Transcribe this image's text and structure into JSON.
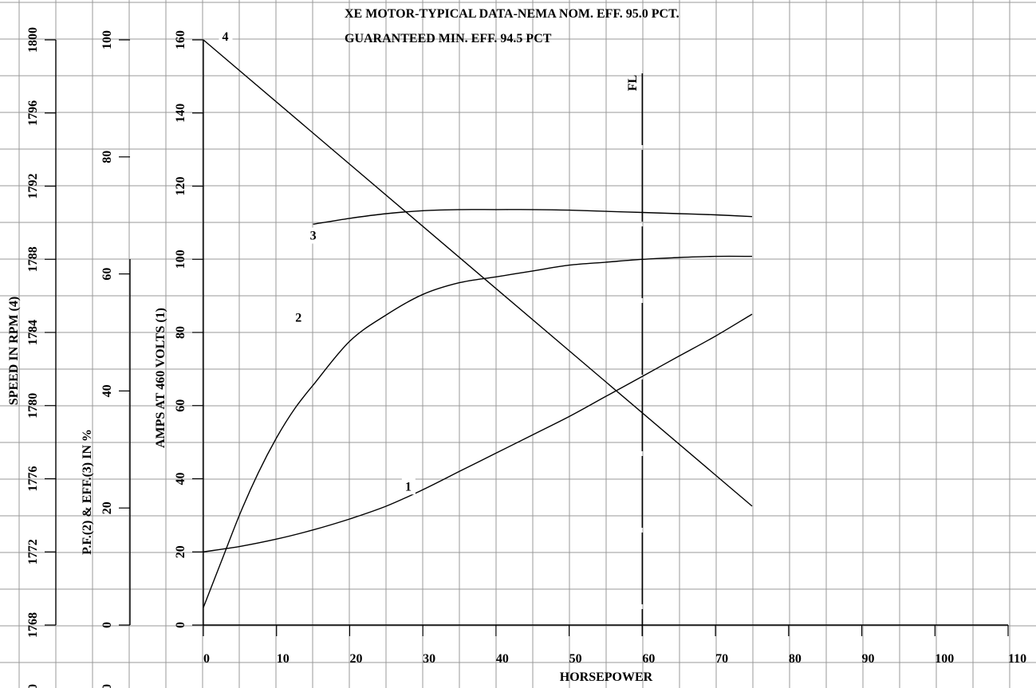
{
  "chart_data": {
    "type": "line",
    "title": "XE MOTOR-TYPICAL DATA-NEMA NOM. EFF. 95.0 PCT.",
    "subtitle": "GUARANTEED MIN. EFF. 94.5 PCT",
    "xlabel": "HORSEPOWER",
    "xlim": [
      0,
      110
    ],
    "x_ticks": [
      "0",
      "10",
      "20",
      "30",
      "40",
      "50",
      "60",
      "70",
      "80",
      "90",
      "100",
      "110"
    ],
    "fl_marker": {
      "label": "FL",
      "x": 60
    },
    "axes": [
      {
        "id": "speed",
        "label": "SPEED IN RPM (4)",
        "ylim": [
          1768,
          1800
        ],
        "ticks": [
          "1768",
          "1772",
          "1776",
          "1780",
          "1784",
          "1788",
          "1792",
          "1796",
          "1800"
        ],
        "extra_tick": "0"
      },
      {
        "id": "pf_eff",
        "label": "P.F.(2) & EFF.(3) IN %",
        "ylim": [
          0,
          100
        ],
        "ticks": [
          "0",
          "20",
          "40",
          "60",
          "80",
          "100"
        ],
        "extra_tick": "0"
      },
      {
        "id": "amps",
        "label": "AMPS AT  460 VOLTS (1)",
        "ylim": [
          0,
          160
        ],
        "ticks": [
          "0",
          "20",
          "40",
          "60",
          "80",
          "100",
          "120",
          "140",
          "160"
        ]
      }
    ],
    "series": [
      {
        "name": "1",
        "axis": "amps",
        "x": [
          0,
          5,
          10,
          15,
          20,
          25,
          30,
          35,
          40,
          45,
          50,
          55,
          60,
          65,
          70,
          75
        ],
        "y": [
          20,
          21.5,
          23.5,
          26,
          29,
          32.5,
          37,
          42,
          47,
          52,
          57,
          62.5,
          68,
          73.5,
          79,
          85
        ]
      },
      {
        "name": "2",
        "axis": "pf_eff",
        "x": [
          0,
          2.5,
          5,
          7.5,
          10,
          12.5,
          15,
          20,
          25,
          30,
          35,
          40,
          45,
          50,
          55,
          60,
          65,
          70,
          75
        ],
        "y": [
          3,
          11,
          19,
          26,
          32,
          37,
          41,
          48.5,
          53,
          56.5,
          58.5,
          59.5,
          60.5,
          61.5,
          62,
          62.5,
          62.8,
          63,
          63
        ]
      },
      {
        "name": "3",
        "axis": "pf_eff",
        "x": [
          15,
          20,
          25,
          30,
          35,
          40,
          45,
          50,
          55,
          60,
          65,
          70,
          75
        ],
        "y": [
          68.5,
          69.5,
          70.3,
          70.8,
          71,
          71,
          71,
          70.9,
          70.7,
          70.5,
          70.3,
          70.1,
          69.8
        ]
      },
      {
        "name": "4",
        "axis": "speed",
        "x": [
          0,
          75
        ],
        "y": [
          1800,
          1774.5
        ]
      }
    ]
  }
}
